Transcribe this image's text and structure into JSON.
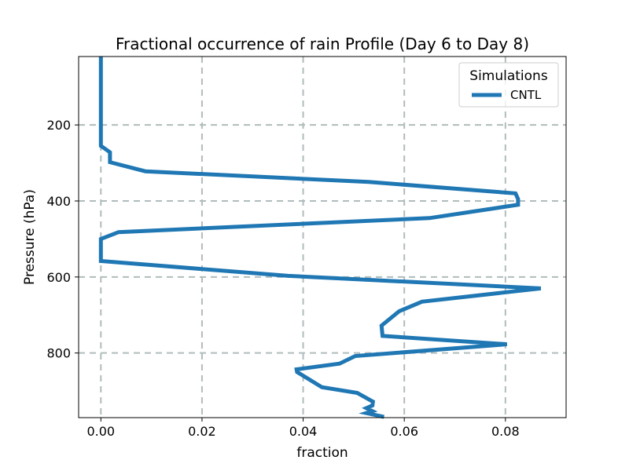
{
  "chart_data": {
    "type": "line",
    "title": "Fractional occurrence of rain Profile (Day 6 to Day 8)",
    "xlabel": "fraction",
    "ylabel": "Pressure (hPa)",
    "xlim": [
      -0.0044,
      0.092
    ],
    "ylim": [
      970,
      20
    ],
    "y_inverted": true,
    "grid": true,
    "x_ticks": [
      0.0,
      0.02,
      0.04,
      0.06,
      0.08
    ],
    "x_tick_labels": [
      "0.00",
      "0.02",
      "0.04",
      "0.06",
      "0.08"
    ],
    "y_ticks": [
      200,
      400,
      600,
      800
    ],
    "y_tick_labels": [
      "200",
      "400",
      "600",
      "800"
    ],
    "legend": {
      "title": "Simulations",
      "position": "top-right"
    },
    "series": [
      {
        "name": "CNTL",
        "color": "#1f77b4",
        "x": [
          0.0,
          0.0,
          0.0,
          0.0018,
          0.0018,
          0.0088,
          0.053,
          0.082,
          0.0825,
          0.0825,
          0.065,
          0.0035,
          0.0,
          0.0,
          0.0,
          0.0,
          0.037,
          0.087,
          0.0635,
          0.059,
          0.0555,
          0.0557,
          0.0803,
          0.0503,
          0.0472,
          0.0387,
          0.0388,
          0.0437,
          0.0507,
          0.0538,
          0.0537,
          0.0525,
          0.0537,
          0.0525,
          0.056
        ],
        "y": [
          20,
          100,
          255,
          272,
          298,
          322,
          350,
          380,
          395,
          410,
          445,
          482,
          500,
          525,
          545,
          558,
          597,
          630,
          665,
          690,
          728,
          755,
          777,
          808,
          828,
          843,
          850,
          890,
          905,
          928,
          938,
          945,
          953,
          958,
          968
        ]
      }
    ]
  }
}
